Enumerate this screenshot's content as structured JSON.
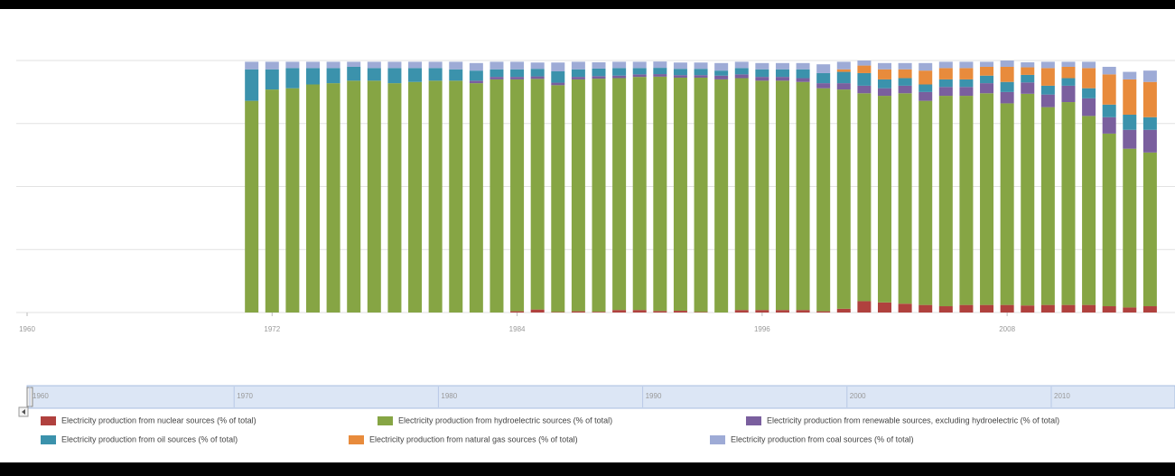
{
  "chart_data": {
    "type": "stacked-bar",
    "x": [
      1971,
      1972,
      1973,
      1974,
      1975,
      1976,
      1977,
      1978,
      1979,
      1980,
      1981,
      1982,
      1983,
      1984,
      1985,
      1986,
      1987,
      1988,
      1989,
      1990,
      1991,
      1992,
      1993,
      1994,
      1995,
      1996,
      1997,
      1998,
      1999,
      2000,
      2001,
      2002,
      2003,
      2004,
      2005,
      2006,
      2007,
      2008,
      2009,
      2010,
      2011,
      2012,
      2013,
      2014,
      2015
    ],
    "xlim": [
      1960,
      2016
    ],
    "xticks": [
      1960,
      1972,
      1984,
      1996,
      2008
    ],
    "ylim": [
      0,
      100
    ],
    "yticks": [
      0,
      25,
      50,
      75,
      100
    ],
    "grid": true,
    "series": [
      {
        "name": "Electricity production from nuclear sources (% of total)",
        "color": "#b0413e",
        "values": [
          0,
          0,
          0,
          0,
          0,
          0,
          0,
          0,
          0,
          0,
          0,
          0,
          0,
          0.5,
          1.2,
          0.2,
          0.5,
          0.3,
          1,
          1,
          0.6,
          0.7,
          0.2,
          0,
          1,
          1,
          1,
          1,
          0.5,
          1.5,
          4.5,
          4,
          3.5,
          3,
          2.5,
          3,
          3,
          3,
          2.8,
          3,
          3,
          3,
          2.5,
          2,
          2.5
        ]
      },
      {
        "name": "Electricity production from hydroelectric sources (% of total)",
        "color": "#86a544",
        "values": [
          84,
          88.5,
          89,
          90.5,
          91,
          92,
          92,
          91,
          91.5,
          92,
          92,
          91,
          92.5,
          92,
          91.5,
          90,
          92,
          92.5,
          92,
          92.5,
          93,
          92.5,
          93,
          92.5,
          92,
          91,
          91,
          90.5,
          88.5,
          87,
          82.5,
          82,
          83.5,
          81,
          83.5,
          83,
          84,
          80,
          84,
          78.5,
          80.5,
          75,
          68.5,
          63,
          61
        ]
      },
      {
        "name": "Electricity production from renewable sources, excluding hydroelectric (% of total)",
        "color": "#7a5f9e",
        "values": [
          0,
          0,
          0,
          0,
          0,
          0,
          0,
          0,
          0,
          0,
          0,
          1,
          1,
          1,
          1,
          1,
          1,
          1,
          1,
          1,
          1,
          1,
          1,
          1.5,
          1.5,
          1.5,
          1.5,
          1.5,
          2,
          2.5,
          3,
          3,
          3,
          3.5,
          3.5,
          3.5,
          4,
          4.5,
          4.5,
          5,
          6.5,
          7,
          6.5,
          7.5,
          9
        ]
      },
      {
        "name": "Electricity production from oil sources (% of total)",
        "color": "#3b92ac",
        "values": [
          12.5,
          8,
          8,
          6.5,
          6,
          5.5,
          5,
          6,
          5.5,
          5,
          4.5,
          4,
          3,
          3,
          3,
          4.5,
          3,
          3,
          3,
          2.5,
          2.5,
          2.5,
          2.5,
          2,
          2.5,
          3,
          3,
          3.5,
          4,
          4.5,
          5,
          3.5,
          3,
          3,
          3,
          3,
          3,
          4,
          3,
          3.5,
          3,
          4,
          5,
          6,
          5
        ]
      },
      {
        "name": "Electricity production from natural gas sources (% of total)",
        "color": "#e88b3c",
        "values": [
          0,
          0,
          0,
          0,
          0,
          0,
          0,
          0,
          0,
          0,
          0,
          0,
          0,
          0,
          0,
          0,
          0,
          0,
          0,
          0,
          0,
          0,
          0,
          0,
          0,
          0,
          0,
          0,
          0,
          1,
          3,
          4,
          3.5,
          5.5,
          4.5,
          4.5,
          3.5,
          6,
          3,
          7,
          4.5,
          8,
          12,
          14,
          14
        ]
      },
      {
        "name": "Electricity production from coal sources (% of total)",
        "color": "#9eabd6",
        "values": [
          3,
          3,
          2.5,
          2.5,
          2.5,
          2,
          2.5,
          2.5,
          2.5,
          2.5,
          3,
          3,
          3,
          3,
          2.5,
          3.5,
          3,
          2.5,
          2.5,
          2.5,
          2.5,
          2.5,
          2.5,
          3,
          2.5,
          2.5,
          2.5,
          2.5,
          3.5,
          3,
          2,
          2.5,
          2.5,
          3,
          2.5,
          2.5,
          2,
          2.5,
          2,
          2.5,
          2,
          2.5,
          3,
          3,
          4.5
        ]
      }
    ],
    "navigator": {
      "ticks": [
        1960,
        1970,
        1980,
        1990,
        2000,
        2010
      ]
    }
  }
}
